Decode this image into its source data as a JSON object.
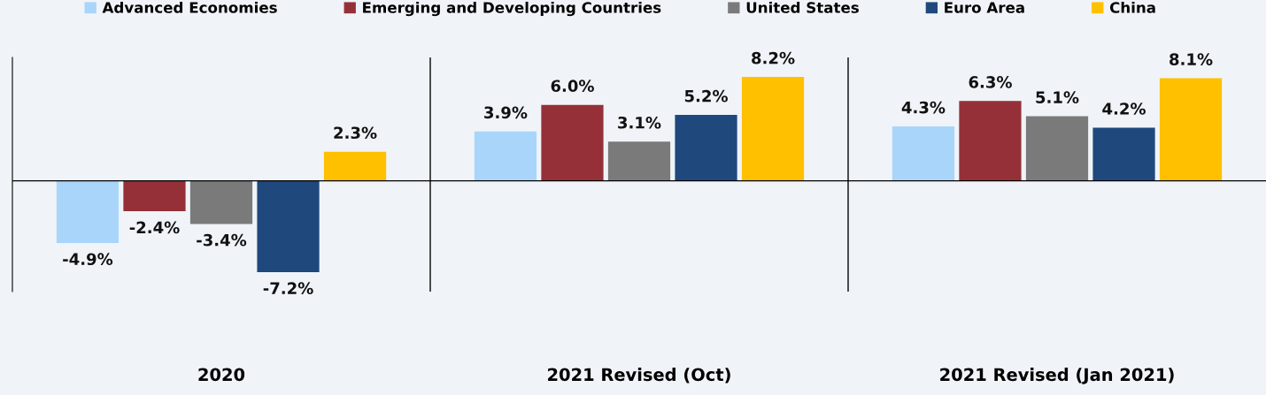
{
  "chart_data": {
    "type": "bar",
    "categories": [
      "2020",
      "2021 Revised (Oct)",
      "2021 Revised (Jan 2021)"
    ],
    "series": [
      {
        "name": "Advanced Economies",
        "color": "#a9d5fa",
        "values": [
          -4.9,
          3.9,
          4.3
        ],
        "value_labels": [
          "-4.9%",
          "3.9%",
          "4.3%"
        ]
      },
      {
        "name": "Emerging and Developing Countries",
        "color": "#953039",
        "values": [
          -2.4,
          6.0,
          6.3
        ],
        "value_labels": [
          "-2.4%",
          "6.0%",
          "6.3%"
        ]
      },
      {
        "name": "United States",
        "color": "#7a7a7a",
        "values": [
          -3.4,
          3.1,
          5.1
        ],
        "value_labels": [
          "-3.4%",
          "3.1%",
          "5.1%"
        ]
      },
      {
        "name": "Euro Area",
        "color": "#1f497d",
        "values": [
          -7.2,
          5.2,
          4.2
        ],
        "value_labels": [
          "-7.2%",
          "5.2%",
          "4.2%"
        ]
      },
      {
        "name": "China",
        "color": "#ffc000",
        "values": [
          2.3,
          8.2,
          8.1
        ],
        "value_labels": [
          "2.3%",
          "8.2%",
          "8.1%"
        ]
      }
    ],
    "grid": "x",
    "legend": "top"
  }
}
